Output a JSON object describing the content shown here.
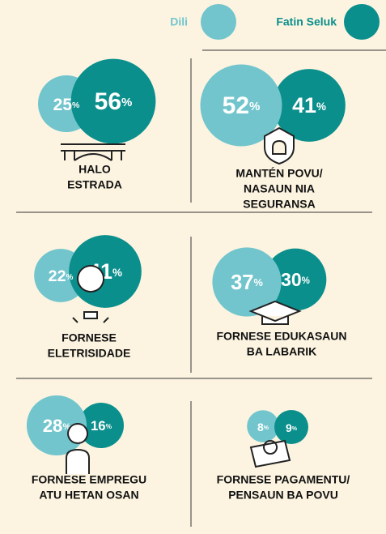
{
  "legend": {
    "dili": {
      "name": "Dili",
      "color": "#72c5cd"
    },
    "fatin": {
      "name": "Fatin Seluk",
      "color": "#0b8f8c"
    }
  },
  "unit": "%",
  "panels": [
    {
      "label": [
        "HALO",
        "ESTRADA"
      ],
      "dili": 25,
      "fatin": 56
    },
    {
      "label": [
        "MANTÉN POVU/",
        "NASAUN NIA",
        "SEGURANSA"
      ],
      "dili": 52,
      "fatin": 41
    },
    {
      "label": [
        "FORNESE",
        "ELETRISIDADE"
      ],
      "dili": 22,
      "fatin": 41
    },
    {
      "label": [
        "FORNESE EDUKASAUN",
        "BA LABARIK"
      ],
      "dili": 37,
      "fatin": 30
    },
    {
      "label": [
        "FORNESE EMPREGU",
        "ATU HETAN OSAN"
      ],
      "dili": 28,
      "fatin": 16
    },
    {
      "label": [
        "FORNESE PAGAMENTU/",
        "PENSAUN BA POVU"
      ],
      "dili": 8,
      "fatin": 9
    }
  ]
}
